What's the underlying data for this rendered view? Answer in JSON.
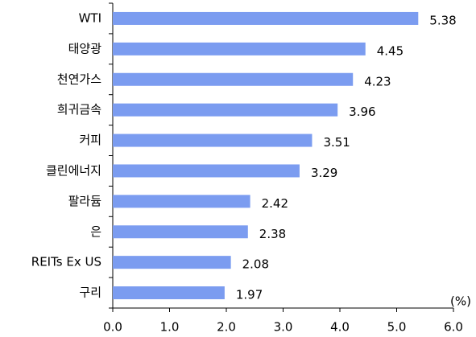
{
  "chart_data": {
    "type": "bar",
    "orientation": "horizontal",
    "categories": [
      "WTI",
      "태양광",
      "천연가스",
      "희귀금속",
      "커피",
      "클린에너지",
      "팔라듐",
      "은",
      "REITs Ex US",
      "구리"
    ],
    "values": [
      5.38,
      4.45,
      4.23,
      3.96,
      3.51,
      3.29,
      2.42,
      2.38,
      2.08,
      1.97
    ],
    "color": "#7b9cf0",
    "xlabel": "(%)",
    "xlim": [
      0,
      6
    ],
    "xticks": [
      {
        "value": 0,
        "label": "0.0"
      },
      {
        "value": 1,
        "label": "1.0"
      },
      {
        "value": 2,
        "label": "2.0"
      },
      {
        "value": 3,
        "label": "3.0"
      },
      {
        "value": 4,
        "label": "4.0"
      },
      {
        "value": 5,
        "label": "5.0"
      },
      {
        "value": 6,
        "label": "6.0"
      }
    ]
  }
}
